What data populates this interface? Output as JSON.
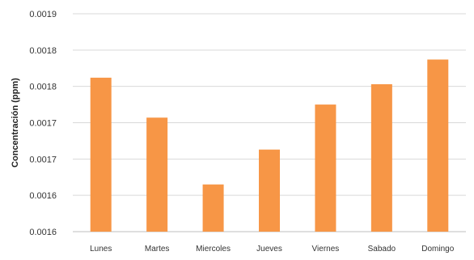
{
  "chart_data": {
    "type": "bar",
    "title": "",
    "xlabel": "",
    "ylabel": "Concentración (ppm)",
    "categories": [
      "Lunes",
      "Martes",
      "Miercoles",
      "Jueves",
      "Viernes",
      "Sabado",
      "Domingo"
    ],
    "series": [
      {
        "values": [
          0.001812,
          0.001757,
          0.001665,
          0.001713,
          0.001775,
          0.001803,
          0.001837
        ]
      }
    ],
    "ylim": [
      0.0016,
      0.0019
    ],
    "yticks": [
      0.0016,
      0.00165,
      0.0017,
      0.00175,
      0.0018,
      0.00185,
      0.0019
    ],
    "ytick_labels": [
      "0.0016",
      "0.0016",
      "0.0017",
      "0.0017",
      "0.0018",
      "0.0018",
      "0.0019"
    ],
    "grid": true,
    "legend": "none",
    "bar_color": "#f79646"
  }
}
